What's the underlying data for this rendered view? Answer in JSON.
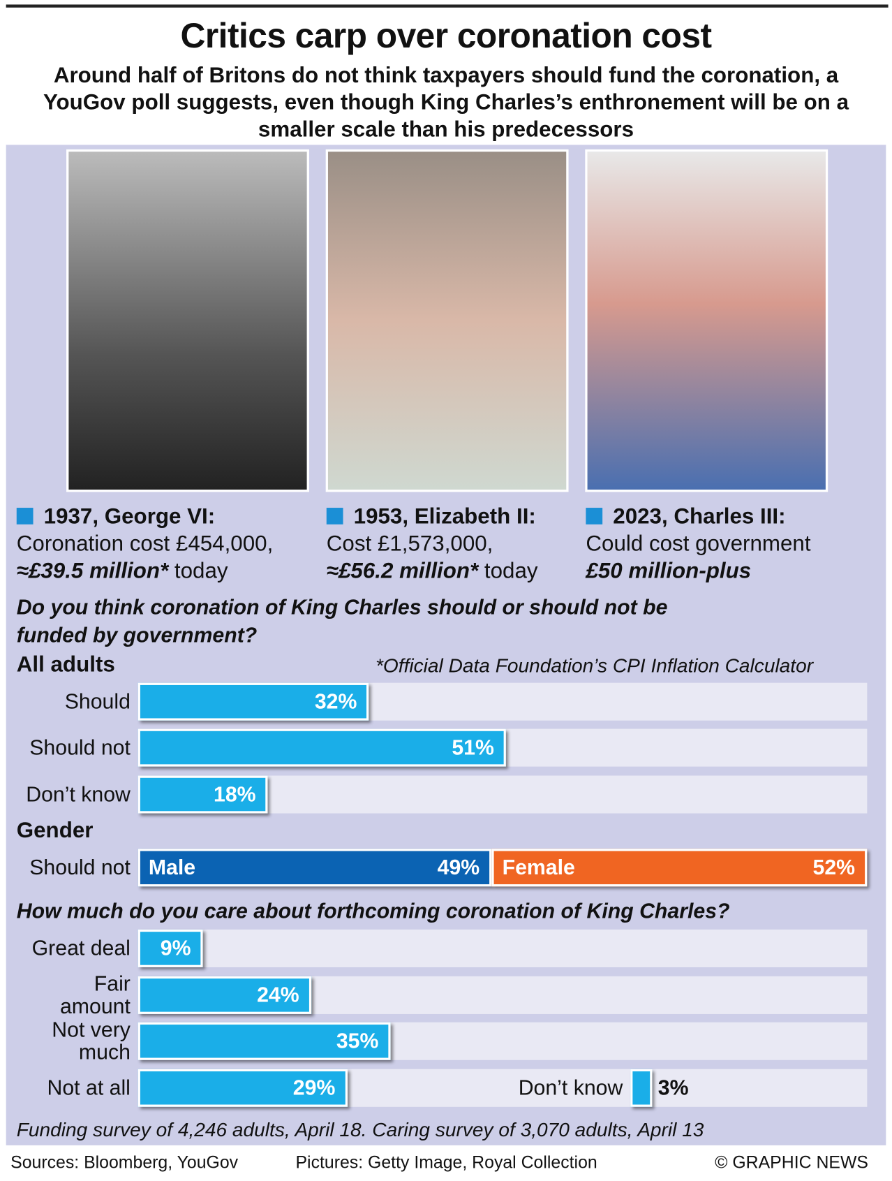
{
  "title": "Critics carp over coronation cost",
  "subtitle": "Around half of Britons do not think taxpayers should fund the coronation, a YouGov poll suggests, even though King Charles’s enthronement will be on a smaller scale than his predecessors",
  "coronations": [
    {
      "heading": "1937, George VI:",
      "line1": "Coronation cost £454,000,",
      "cost_today": "≈£39.5 million*",
      "suffix": "today"
    },
    {
      "heading": "1953, Elizabeth II:",
      "line1": "Cost £1,573,000,",
      "cost_today": "≈£56.2 million*",
      "suffix": "today"
    },
    {
      "heading": "2023, Charles III:",
      "line1": "Could cost government",
      "cost_today": "£50 million-plus"
    }
  ],
  "footnote": "*Official Data Foundation’s CPI Inflation Calculator",
  "chart_data": [
    {
      "type": "bar",
      "title": "Do you think coronation of King Charles should or should not be funded by government?",
      "group_label": "All adults",
      "categories": [
        "Should",
        "Should not",
        "Don’t know"
      ],
      "values": [
        32,
        51,
        18
      ],
      "value_labels": [
        "32%",
        "51%",
        "18%"
      ],
      "color": "#1aaee8",
      "xlim": [
        0,
        101
      ]
    },
    {
      "type": "stacked_bar",
      "title": "Gender",
      "categories": [
        "Should not"
      ],
      "xlim": [
        0,
        101
      ],
      "series": [
        {
          "name": "Male",
          "color": "#0b63b3",
          "values": [
            49
          ],
          "value_labels": [
            "49%"
          ]
        },
        {
          "name": "Female",
          "color": "#f06522",
          "values": [
            52
          ],
          "value_labels": [
            "52%"
          ]
        }
      ]
    },
    {
      "type": "bar",
      "title": "How much do you care about forthcoming coronation of King Charles?",
      "categories": [
        "Great deal",
        "Fair amount",
        "Not very much",
        "Not at all",
        "Don’t know"
      ],
      "values": [
        9,
        24,
        35,
        29,
        3
      ],
      "value_labels": [
        "9%",
        "24%",
        "35%",
        "29%",
        "3%"
      ],
      "color": "#1aaee8",
      "xlim": [
        0,
        101
      ]
    }
  ],
  "survey_note": "Funding survey of 4,246 adults, April 18. Caring survey of 3,070 adults, April 13",
  "sources": "Sources: Bloomberg, YouGov",
  "pictures": "Pictures: Getty Image, Royal Collection",
  "credit": "© GRAPHIC NEWS"
}
